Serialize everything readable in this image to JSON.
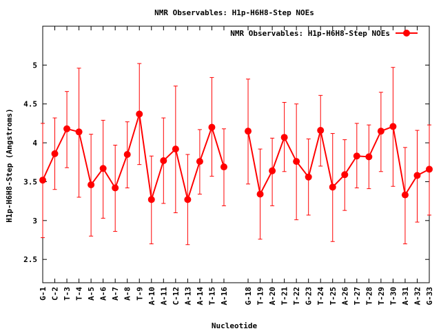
{
  "chart_data": {
    "type": "line",
    "title": "NMR Observables: H1p-H6H8-Step NOEs",
    "xlabel": "Nucleotide",
    "ylabel": "H1p-H6H8-Step (Angstroms)",
    "ylim": [
      2.2,
      5.5
    ],
    "yticks": [
      2.5,
      3,
      3.5,
      4,
      4.5,
      5
    ],
    "grid": false,
    "legend_position": "top-right",
    "series": [
      {
        "name": "NMR Observables: H1p-H6H8-Step NOEs",
        "color": "#ff0000",
        "marker": "circle",
        "error_bars": true,
        "points": [
          {
            "x": 1,
            "label": "G-1",
            "y": 3.52,
            "lo": 2.78,
            "hi": 4.25
          },
          {
            "x": 2,
            "label": "C-2",
            "y": 3.86,
            "lo": 3.4,
            "hi": 4.32
          },
          {
            "x": 3,
            "label": "T-3",
            "y": 4.18,
            "lo": 3.68,
            "hi": 4.66
          },
          {
            "x": 4,
            "label": "T-4",
            "y": 4.14,
            "lo": 3.3,
            "hi": 4.96
          },
          {
            "x": 5,
            "label": "A-5",
            "y": 3.46,
            "lo": 2.8,
            "hi": 4.11
          },
          {
            "x": 6,
            "label": "A-6",
            "y": 3.67,
            "lo": 3.03,
            "hi": 4.29
          },
          {
            "x": 7,
            "label": "A-7",
            "y": 3.42,
            "lo": 2.86,
            "hi": 3.97
          },
          {
            "x": 8,
            "label": "A-8",
            "y": 3.85,
            "lo": 3.42,
            "hi": 4.27
          },
          {
            "x": 9,
            "label": "T-9",
            "y": 4.37,
            "lo": 3.72,
            "hi": 5.02
          },
          {
            "x": 10,
            "label": "A-10",
            "y": 3.27,
            "lo": 2.7,
            "hi": 3.83
          },
          {
            "x": 11,
            "label": "A-11",
            "y": 3.77,
            "lo": 3.22,
            "hi": 4.32
          },
          {
            "x": 12,
            "label": "C-12",
            "y": 3.92,
            "lo": 3.1,
            "hi": 4.73
          },
          {
            "x": 13,
            "label": "A-13",
            "y": 3.27,
            "lo": 2.69,
            "hi": 3.85
          },
          {
            "x": 14,
            "label": "A-14",
            "y": 3.76,
            "lo": 3.34,
            "hi": 4.17
          },
          {
            "x": 15,
            "label": "T-15",
            "y": 4.2,
            "lo": 3.57,
            "hi": 4.84
          },
          {
            "x": 16,
            "label": "A-16",
            "y": 3.69,
            "lo": 3.19,
            "hi": 4.18
          },
          {
            "x": 18,
            "label": "G-18",
            "y": 4.15,
            "lo": 3.47,
            "hi": 4.82
          },
          {
            "x": 19,
            "label": "T-19",
            "y": 3.34,
            "lo": 2.76,
            "hi": 3.92
          },
          {
            "x": 20,
            "label": "A-20",
            "y": 3.64,
            "lo": 3.19,
            "hi": 4.06
          },
          {
            "x": 21,
            "label": "T-21",
            "y": 4.07,
            "lo": 3.63,
            "hi": 4.52
          },
          {
            "x": 22,
            "label": "T-22",
            "y": 3.76,
            "lo": 3.01,
            "hi": 4.5
          },
          {
            "x": 23,
            "label": "G-23",
            "y": 3.56,
            "lo": 3.07,
            "hi": 4.05
          },
          {
            "x": 24,
            "label": "T-24",
            "y": 4.16,
            "lo": 3.7,
            "hi": 4.61
          },
          {
            "x": 25,
            "label": "T-25",
            "y": 3.43,
            "lo": 2.73,
            "hi": 4.12
          },
          {
            "x": 26,
            "label": "A-26",
            "y": 3.59,
            "lo": 3.13,
            "hi": 4.04
          },
          {
            "x": 27,
            "label": "T-27",
            "y": 3.83,
            "lo": 3.42,
            "hi": 4.25
          },
          {
            "x": 28,
            "label": "T-28",
            "y": 3.82,
            "lo": 3.41,
            "hi": 4.23
          },
          {
            "x": 29,
            "label": "T-29",
            "y": 4.15,
            "lo": 3.63,
            "hi": 4.65
          },
          {
            "x": 30,
            "label": "T-30",
            "y": 4.21,
            "lo": 3.44,
            "hi": 4.97
          },
          {
            "x": 31,
            "label": "A-31",
            "y": 3.33,
            "lo": 2.7,
            "hi": 3.94
          },
          {
            "x": 32,
            "label": "A-32",
            "y": 3.58,
            "lo": 2.98,
            "hi": 4.16
          },
          {
            "x": 33,
            "label": "G-33",
            "y": 3.66,
            "lo": 3.07,
            "hi": 4.23
          }
        ]
      }
    ]
  }
}
